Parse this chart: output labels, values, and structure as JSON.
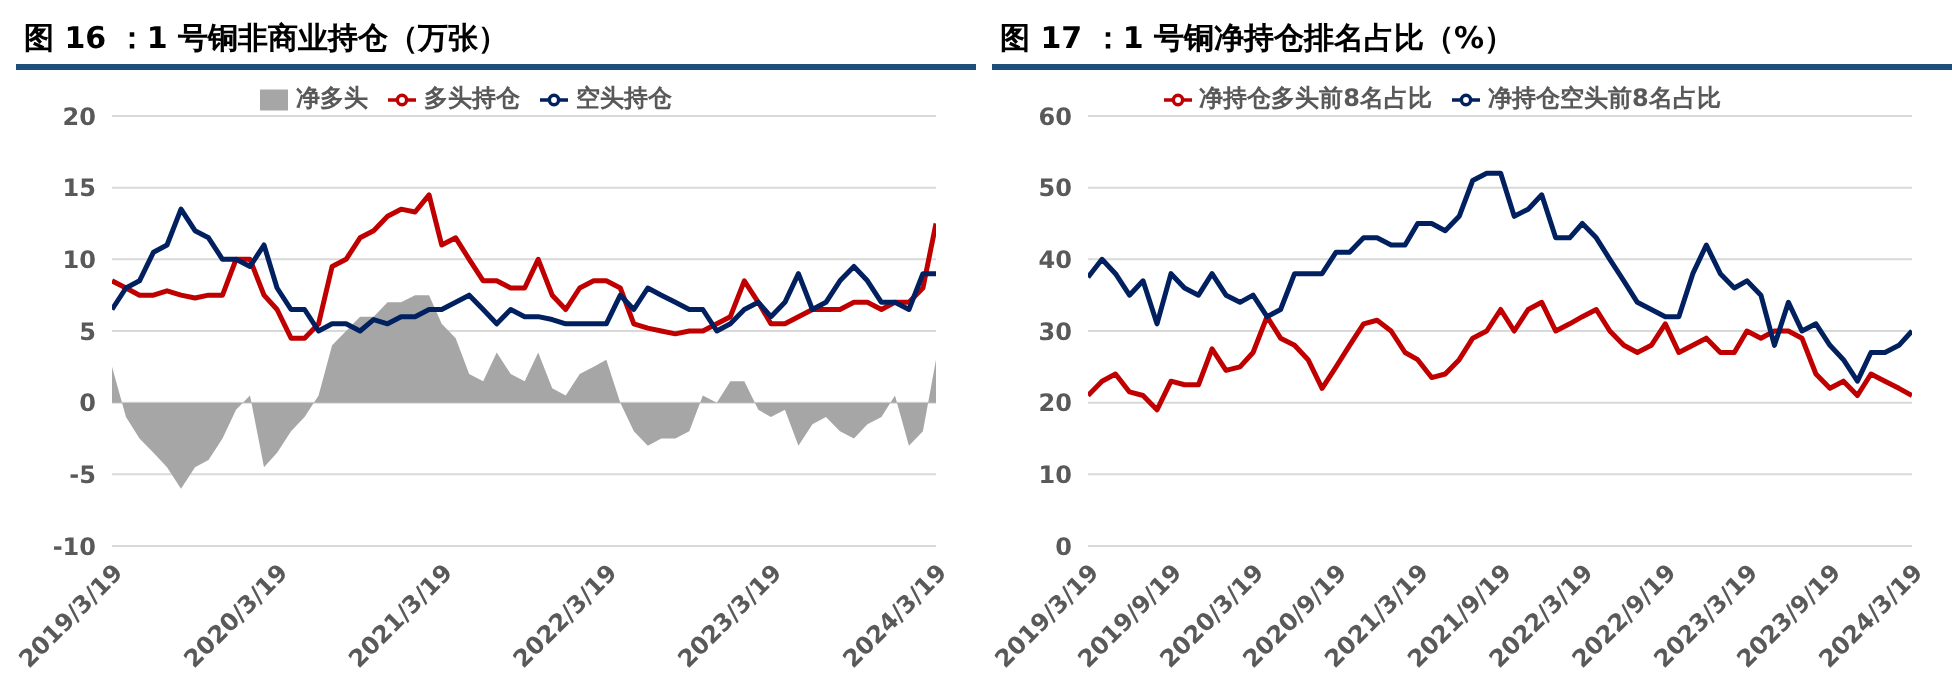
{
  "chart_data": [
    {
      "type": "line",
      "title": "图 16 ：1 号铜非商业持仓（万张）",
      "legend": "top",
      "grid": "y",
      "ylim": [
        -10,
        20
      ],
      "yticks": [
        -10,
        -5,
        0,
        5,
        10,
        15,
        20
      ],
      "x": [
        "2019-03-19",
        "2019-04-19",
        "2019-05-19",
        "2019-06-19",
        "2019-07-19",
        "2019-08-19",
        "2019-09-19",
        "2019-10-19",
        "2019-11-19",
        "2019-12-19",
        "2020-01-19",
        "2020-02-19",
        "2020-03-19",
        "2020-04-19",
        "2020-05-19",
        "2020-06-19",
        "2020-07-19",
        "2020-08-19",
        "2020-09-19",
        "2020-10-19",
        "2020-11-19",
        "2020-12-19",
        "2021-01-19",
        "2021-02-19",
        "2021-03-19",
        "2021-04-19",
        "2021-05-19",
        "2021-06-19",
        "2021-07-19",
        "2021-08-19",
        "2021-09-19",
        "2021-10-19",
        "2021-11-19",
        "2021-12-19",
        "2022-01-19",
        "2022-02-19",
        "2022-03-19",
        "2022-04-19",
        "2022-05-19",
        "2022-06-19",
        "2022-07-19",
        "2022-08-19",
        "2022-09-19",
        "2022-10-19",
        "2022-11-19",
        "2022-12-19",
        "2023-01-19",
        "2023-02-19",
        "2023-03-19",
        "2023-04-19",
        "2023-05-19",
        "2023-06-19",
        "2023-07-19",
        "2023-08-19",
        "2023-09-19",
        "2023-10-19",
        "2023-11-19",
        "2023-12-19",
        "2024-01-19",
        "2024-02-19",
        "2024-03-19"
      ],
      "xlim": [
        "2019-03-19",
        "2024-03-19"
      ],
      "xticks": [
        {
          "value": "2019-03-19",
          "label": "2019/3/19"
        },
        {
          "value": "2020-03-19",
          "label": "2020/3/19"
        },
        {
          "value": "2021-03-19",
          "label": "2021/3/19"
        },
        {
          "value": "2022-03-19",
          "label": "2022/3/19"
        },
        {
          "value": "2023-03-19",
          "label": "2023/3/19"
        },
        {
          "value": "2024-03-19",
          "label": "2024/3/19"
        }
      ],
      "series": [
        {
          "name": "净多头",
          "type": "area",
          "color": "#a6a6a6",
          "values": [
            2.5,
            -1,
            -2.5,
            -3.5,
            -4.5,
            -6,
            -4.5,
            -4,
            -2.5,
            -0.5,
            0.5,
            -4.5,
            -3.5,
            -2,
            -1,
            0.5,
            4,
            5,
            6,
            6,
            7,
            7,
            7.5,
            7.5,
            5.5,
            4.5,
            2,
            1.5,
            3.5,
            2,
            1.5,
            3.5,
            1,
            0.5,
            2,
            2.5,
            3,
            0,
            -2,
            -3,
            -2.5,
            -2.5,
            -2,
            0.5,
            0,
            1.5,
            1.5,
            -0.5,
            -1,
            -0.5,
            -3,
            -1.5,
            -1,
            -2,
            -2.5,
            -1.5,
            -1,
            0.5,
            -3,
            -2,
            3
          ]
        },
        {
          "name": "多头持仓",
          "color": "#c00000",
          "values": [
            8.5,
            8,
            7.5,
            7.5,
            7.8,
            7.5,
            7.3,
            7.5,
            7.5,
            10,
            10,
            7.5,
            6.5,
            4.5,
            4.5,
            5.5,
            9.5,
            10,
            11.5,
            12,
            13,
            13.5,
            13.3,
            14.5,
            11,
            11.5,
            10,
            8.5,
            8.5,
            8,
            8,
            10,
            7.5,
            6.5,
            8,
            8.5,
            8.5,
            8,
            5.5,
            5.2,
            5,
            4.8,
            5,
            5,
            5.5,
            6,
            8.5,
            7,
            5.5,
            5.5,
            6,
            6.5,
            6.5,
            6.5,
            7,
            7,
            6.5,
            7,
            7,
            8,
            12.5
          ]
        },
        {
          "name": "空头持仓",
          "color": "#002060",
          "values": [
            6.5,
            8,
            8.5,
            10.5,
            11,
            13.5,
            12,
            11.5,
            10,
            10,
            9.5,
            11,
            8,
            6.5,
            6.5,
            5,
            5.5,
            5.5,
            5,
            5.8,
            5.5,
            6,
            6,
            6.5,
            6.5,
            7,
            7.5,
            6.5,
            5.5,
            6.5,
            6,
            6,
            5.8,
            5.5,
            5.5,
            5.5,
            5.5,
            7.5,
            6.5,
            8,
            7.5,
            7,
            6.5,
            6.5,
            5,
            5.5,
            6.5,
            7,
            6,
            7,
            9,
            6.5,
            7,
            8.5,
            9.5,
            8.5,
            7,
            7,
            6.5,
            9,
            9
          ]
        }
      ]
    },
    {
      "type": "line",
      "title": "图 17 ：1 号铜净持仓排名占比（%）",
      "legend": "top",
      "grid": "y",
      "ylim": [
        0,
        60
      ],
      "yticks": [
        0,
        10,
        20,
        30,
        40,
        50,
        60
      ],
      "x": [
        "2019-03-19",
        "2019-04-19",
        "2019-05-19",
        "2019-06-19",
        "2019-07-19",
        "2019-08-19",
        "2019-09-19",
        "2019-10-19",
        "2019-11-19",
        "2019-12-19",
        "2020-01-19",
        "2020-02-19",
        "2020-03-19",
        "2020-04-19",
        "2020-05-19",
        "2020-06-19",
        "2020-07-19",
        "2020-08-19",
        "2020-09-19",
        "2020-10-19",
        "2020-11-19",
        "2020-12-19",
        "2021-01-19",
        "2021-02-19",
        "2021-03-19",
        "2021-04-19",
        "2021-05-19",
        "2021-06-19",
        "2021-07-19",
        "2021-08-19",
        "2021-09-19",
        "2021-10-19",
        "2021-11-19",
        "2021-12-19",
        "2022-01-19",
        "2022-02-19",
        "2022-03-19",
        "2022-04-19",
        "2022-05-19",
        "2022-06-19",
        "2022-07-19",
        "2022-08-19",
        "2022-09-19",
        "2022-10-19",
        "2022-11-19",
        "2022-12-19",
        "2023-01-19",
        "2023-02-19",
        "2023-03-19",
        "2023-04-19",
        "2023-05-19",
        "2023-06-19",
        "2023-07-19",
        "2023-08-19",
        "2023-09-19",
        "2023-10-19",
        "2023-11-19",
        "2023-12-19",
        "2024-01-19",
        "2024-02-19",
        "2024-03-19"
      ],
      "xlim": [
        "2019-03-19",
        "2024-03-19"
      ],
      "xticks": [
        {
          "value": "2019-03-19",
          "label": "2019/3/19"
        },
        {
          "value": "2019-09-19",
          "label": "2019/9/19"
        },
        {
          "value": "2020-03-19",
          "label": "2020/3/19"
        },
        {
          "value": "2020-09-19",
          "label": "2020/9/19"
        },
        {
          "value": "2021-03-19",
          "label": "2021/3/19"
        },
        {
          "value": "2021-09-19",
          "label": "2021/9/19"
        },
        {
          "value": "2022-03-19",
          "label": "2022/3/19"
        },
        {
          "value": "2022-09-19",
          "label": "2022/9/19"
        },
        {
          "value": "2023-03-19",
          "label": "2023/3/19"
        },
        {
          "value": "2023-09-19",
          "label": "2023/9/19"
        },
        {
          "value": "2024-03-19",
          "label": "2024/3/19"
        }
      ],
      "series": [
        {
          "name": "净持仓多头前8名占比",
          "color": "#c00000",
          "values": [
            21,
            23,
            24,
            21.5,
            21,
            19,
            23,
            22.5,
            22.5,
            27.5,
            24.5,
            25,
            27,
            32,
            29,
            28,
            26,
            22,
            25,
            28,
            31,
            31.5,
            30,
            27,
            26,
            23.5,
            24,
            26,
            29,
            30,
            33,
            30,
            33,
            34,
            30,
            31,
            32,
            33,
            30,
            28,
            27,
            28,
            31,
            27,
            28,
            29,
            27,
            27,
            30,
            29,
            30,
            30,
            29,
            24,
            22,
            23,
            21,
            24,
            23,
            22,
            21
          ]
        },
        {
          "name": "净持仓空头前8名占比",
          "color": "#002060",
          "values": [
            37.5,
            40,
            38,
            35,
            37,
            31,
            38,
            36,
            35,
            38,
            35,
            34,
            35,
            32,
            33,
            38,
            38,
            38,
            41,
            41,
            43,
            43,
            42,
            42,
            45,
            45,
            44,
            46,
            51,
            52,
            52,
            46,
            47,
            49,
            43,
            43,
            45,
            43,
            40,
            37,
            34,
            33,
            32,
            32,
            38,
            42,
            38,
            36,
            37,
            35,
            28,
            34,
            30,
            31,
            28,
            26,
            23,
            27,
            27,
            28,
            30
          ]
        }
      ]
    }
  ]
}
